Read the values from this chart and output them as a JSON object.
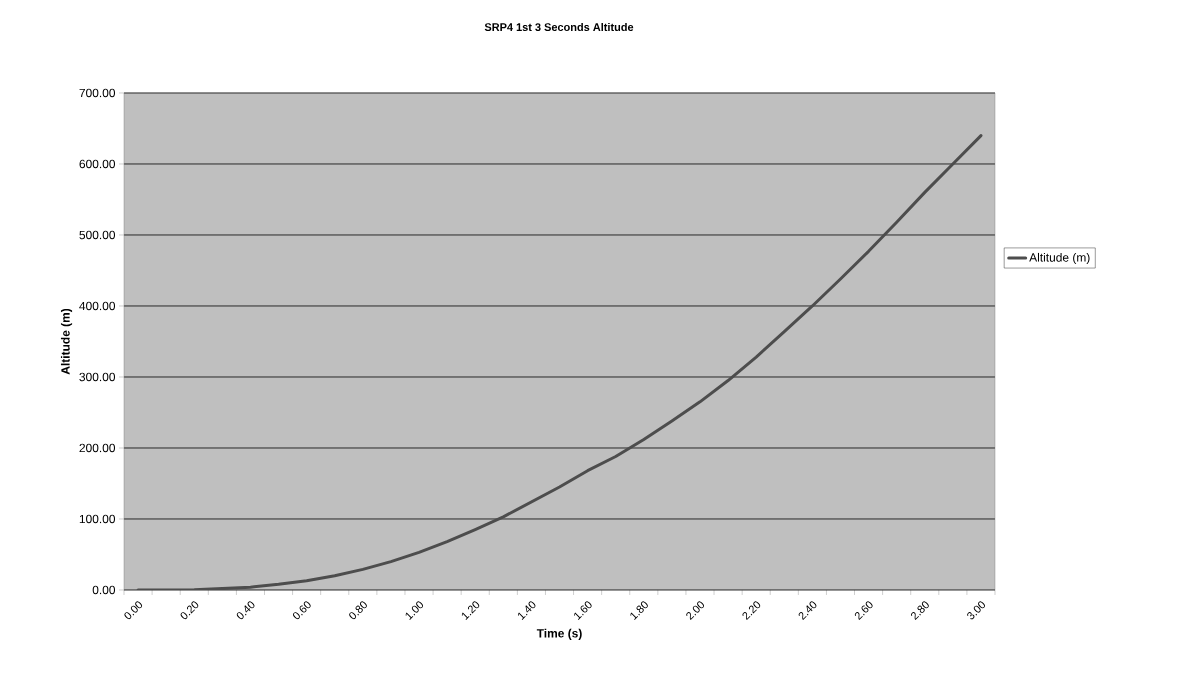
{
  "chart_data": {
    "type": "line",
    "title": "SRP4 1st 3 Seconds Altitude",
    "xlabel": "Time (s)",
    "ylabel": "Altitude (m)",
    "categories": [
      "0.00",
      null,
      "0.20",
      null,
      "0.40",
      null,
      "0.60",
      null,
      "0.80",
      null,
      "1.00",
      null,
      "1.20",
      null,
      "1.40",
      null,
      "1.60",
      null,
      "1.80",
      null,
      "2.00",
      null,
      "2.20",
      null,
      "2.40",
      null,
      "2.60",
      null,
      "2.80",
      null,
      "3.00"
    ],
    "series": [
      {
        "name": "Altitude (m)",
        "color": "#4d4d4d",
        "values": [
          0,
          0,
          0.5,
          2,
          4,
          8,
          13,
          20,
          29,
          40,
          53,
          68,
          85,
          103,
          124,
          145,
          168,
          188,
          212,
          238,
          265,
          295,
          328,
          364,
          400,
          438,
          477,
          518,
          560,
          600,
          640
        ]
      }
    ],
    "ylim": [
      0,
      700
    ],
    "yticks": [
      {
        "value": 0,
        "label": "0.00"
      },
      {
        "value": 100,
        "label": "100.00"
      },
      {
        "value": 200,
        "label": "200.00"
      },
      {
        "value": 300,
        "label": "300.00"
      },
      {
        "value": 400,
        "label": "400.00"
      },
      {
        "value": 500,
        "label": "500.00"
      },
      {
        "value": 600,
        "label": "600.00"
      },
      {
        "value": 700,
        "label": "700.00"
      }
    ],
    "grid": "y",
    "legend": "right",
    "marker": "none",
    "line_style": "solid"
  }
}
